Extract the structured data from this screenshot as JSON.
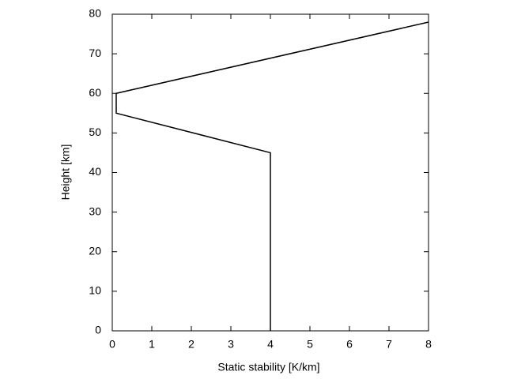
{
  "chart_data": {
    "type": "line",
    "xlabel": "Static stability [K/km]",
    "ylabel": "Height [km]",
    "x": [
      4,
      4,
      0.1,
      0.1,
      8
    ],
    "values": [
      0,
      45,
      55,
      60,
      78
    ],
    "color": "#000000",
    "xlim": [
      0,
      8
    ],
    "xticks": [
      0,
      1,
      2,
      3,
      4,
      5,
      6,
      7,
      8
    ],
    "ylim": [
      0,
      80
    ],
    "yticks": [
      0,
      10,
      20,
      30,
      40,
      50,
      60,
      70,
      80
    ],
    "grid": false
  }
}
